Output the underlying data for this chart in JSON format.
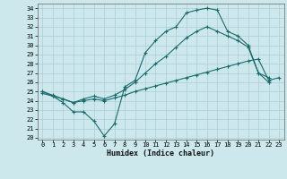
{
  "xlabel": "Humidex (Indice chaleur)",
  "bg_color": "#cce8ec",
  "grid_color": "#aacdd4",
  "line_color": "#1a6b6b",
  "x_ticks": [
    0,
    1,
    2,
    3,
    4,
    5,
    6,
    7,
    8,
    9,
    10,
    11,
    12,
    13,
    14,
    15,
    16,
    17,
    18,
    19,
    20,
    21,
    22,
    23
  ],
  "y_ticks": [
    20,
    21,
    22,
    23,
    24,
    25,
    26,
    27,
    28,
    29,
    30,
    31,
    32,
    33,
    34
  ],
  "ylim": [
    19.8,
    34.5
  ],
  "xlim": [
    -0.5,
    23.5
  ],
  "line1_x": [
    0,
    1,
    2,
    3,
    4,
    5,
    6,
    7,
    8,
    9,
    10,
    11,
    12,
    13,
    14,
    15,
    16,
    17,
    18,
    19,
    20,
    21,
    22
  ],
  "line1_y": [
    25.0,
    24.5,
    23.8,
    22.8,
    22.8,
    21.8,
    20.2,
    21.5,
    25.5,
    26.2,
    29.2,
    30.5,
    31.5,
    32.0,
    33.5,
    33.8,
    34.0,
    33.8,
    31.5,
    31.0,
    30.0,
    27.0,
    26.5
  ],
  "line2_x": [
    0,
    1,
    2,
    3,
    4,
    5,
    6,
    7,
    8,
    9,
    10,
    11,
    12,
    13,
    14,
    15,
    16,
    17,
    18,
    19,
    20,
    21,
    22,
    23
  ],
  "line2_y": [
    24.8,
    24.5,
    24.2,
    23.8,
    24.0,
    24.2,
    24.0,
    24.3,
    24.6,
    25.0,
    25.3,
    25.6,
    25.9,
    26.2,
    26.5,
    26.8,
    27.1,
    27.4,
    27.7,
    28.0,
    28.3,
    28.5,
    26.2,
    26.5
  ],
  "line3_x": [
    0,
    1,
    2,
    3,
    4,
    5,
    6,
    7,
    8,
    9,
    10,
    11,
    12,
    13,
    14,
    15,
    16,
    17,
    18,
    19,
    20,
    21,
    22
  ],
  "line3_y": [
    25.0,
    24.6,
    24.2,
    23.8,
    24.2,
    24.5,
    24.2,
    24.6,
    25.2,
    26.0,
    27.0,
    28.0,
    28.8,
    29.8,
    30.8,
    31.5,
    32.0,
    31.5,
    31.0,
    30.5,
    29.8,
    27.0,
    26.0
  ],
  "label_fontsize": 5,
  "xlabel_fontsize": 6
}
